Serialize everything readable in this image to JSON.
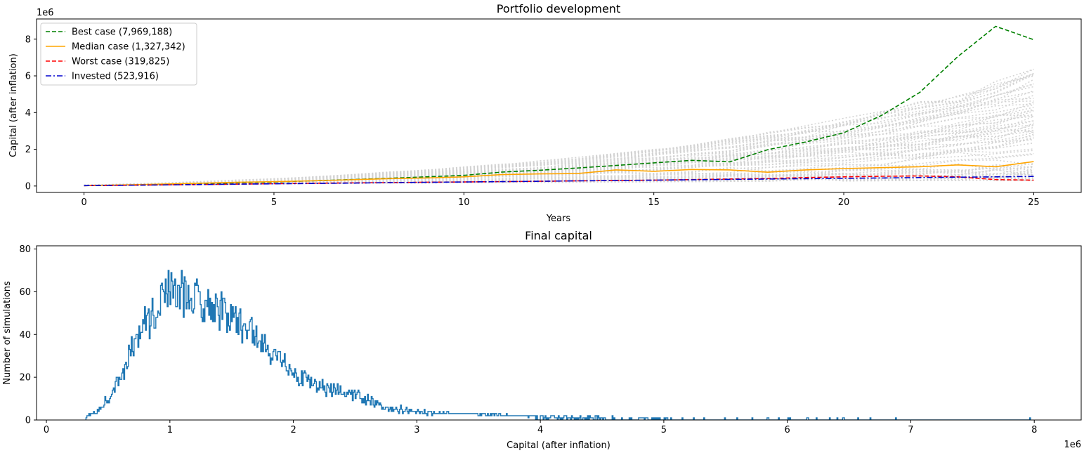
{
  "chart_data": [
    {
      "type": "line",
      "title": "Portfolio development",
      "xlabel": "Years",
      "ylabel": "Capital (after inflation)",
      "y_multiplier_label": "1e6",
      "xlim": [
        -1.25,
        26.25
      ],
      "ylim": [
        -0.35,
        9.1
      ],
      "x_ticks": [
        0,
        5,
        10,
        15,
        20,
        25
      ],
      "x_tick_labels": [
        "0",
        "5",
        "10",
        "15",
        "20",
        "25"
      ],
      "y_ticks": [
        0,
        2,
        4,
        6,
        8
      ],
      "y_tick_labels": [
        "0",
        "2",
        "4",
        "6",
        "8"
      ],
      "grid": false,
      "legend_position": "upper-left",
      "x": [
        0,
        1,
        2,
        3,
        4,
        5,
        6,
        7,
        8,
        9,
        10,
        11,
        12,
        13,
        14,
        15,
        16,
        17,
        18,
        19,
        20,
        21,
        22,
        23,
        24,
        25
      ],
      "series": [
        {
          "name": "Best case (7,969,188)",
          "color": "#008000",
          "style": "dashed",
          "values": [
            0.02,
            0.05,
            0.08,
            0.12,
            0.17,
            0.22,
            0.28,
            0.35,
            0.42,
            0.5,
            0.58,
            0.76,
            0.86,
            0.98,
            1.12,
            1.26,
            1.4,
            1.32,
            1.98,
            2.4,
            2.9,
            3.85,
            5.1,
            7.05,
            8.7,
            7.97
          ]
        },
        {
          "name": "Median case (1,327,342)",
          "color": "#ffa500",
          "style": "solid",
          "values": [
            0.02,
            0.06,
            0.1,
            0.15,
            0.2,
            0.24,
            0.28,
            0.34,
            0.4,
            0.44,
            0.5,
            0.62,
            0.66,
            0.68,
            0.88,
            0.8,
            0.9,
            0.88,
            0.75,
            0.88,
            0.95,
            1.0,
            1.05,
            1.15,
            1.05,
            1.33
          ]
        },
        {
          "name": "Worst case (319,825)",
          "color": "#ff0000",
          "style": "dashed",
          "values": [
            0.02,
            0.04,
            0.06,
            0.08,
            0.1,
            0.13,
            0.15,
            0.17,
            0.18,
            0.21,
            0.22,
            0.24,
            0.26,
            0.28,
            0.3,
            0.32,
            0.35,
            0.38,
            0.41,
            0.46,
            0.5,
            0.53,
            0.55,
            0.5,
            0.35,
            0.32
          ]
        },
        {
          "name": "Invested (523,916)",
          "color": "#0000cd",
          "style": "dashdot",
          "values": [
            0.02,
            0.04,
            0.06,
            0.08,
            0.1,
            0.12,
            0.14,
            0.16,
            0.18,
            0.2,
            0.22,
            0.24,
            0.26,
            0.28,
            0.3,
            0.32,
            0.34,
            0.36,
            0.38,
            0.4,
            0.42,
            0.44,
            0.46,
            0.48,
            0.5,
            0.524
          ]
        }
      ],
      "background_simulations": {
        "color": "#d3d3d3",
        "style": "dotted",
        "upper_envelope": [
          0.05,
          0.1,
          0.16,
          0.24,
          0.32,
          0.4,
          0.5,
          0.62,
          0.76,
          0.9,
          1.05,
          1.2,
          1.38,
          1.58,
          1.8,
          2.05,
          2.3,
          2.6,
          2.95,
          3.3,
          3.7,
          4.1,
          4.6,
          5.1,
          5.7,
          6.5
        ],
        "lower_envelope": [
          0.02,
          0.04,
          0.06,
          0.08,
          0.1,
          0.12,
          0.14,
          0.15,
          0.16,
          0.17,
          0.18,
          0.19,
          0.2,
          0.21,
          0.22,
          0.23,
          0.24,
          0.25,
          0.26,
          0.27,
          0.28,
          0.29,
          0.3,
          0.3,
          0.3,
          0.3
        ]
      }
    },
    {
      "type": "histogram",
      "title": "Final capital",
      "xlabel": "Capital (after inflation)",
      "ylabel": "Number of simulations",
      "x_multiplier_label": "1e6",
      "xlim": [
        -0.08,
        8.38
      ],
      "ylim": [
        0,
        81.5
      ],
      "x_ticks": [
        0,
        1,
        2,
        3,
        4,
        5,
        6,
        7,
        8
      ],
      "x_tick_labels": [
        "0",
        "1",
        "2",
        "3",
        "4",
        "5",
        "6",
        "7",
        "8"
      ],
      "y_ticks": [
        0,
        20,
        40,
        60,
        80
      ],
      "y_tick_labels": [
        "0",
        "20",
        "40",
        "60",
        "80"
      ],
      "grid": false,
      "color": "#1f77b4",
      "style": "step",
      "bin_range": [
        0.32,
        7.97
      ],
      "peak_count": 78,
      "profile_x": [
        0.32,
        0.4,
        0.5,
        0.6,
        0.7,
        0.8,
        0.9,
        0.97,
        1.05,
        1.15,
        1.25,
        1.35,
        1.45,
        1.55,
        1.65,
        1.75,
        1.85,
        1.95,
        2.05,
        2.2,
        2.35,
        2.5,
        2.6,
        2.7,
        2.85,
        3.0,
        3.2,
        3.4,
        3.6,
        3.8,
        4.0,
        4.3,
        4.6,
        5.0,
        5.5,
        6.0,
        7.0,
        7.97
      ],
      "profile_y": [
        1,
        3,
        10,
        20,
        35,
        45,
        52,
        62,
        60,
        58,
        57,
        54,
        50,
        46,
        42,
        36,
        30,
        26,
        20,
        16,
        13,
        11,
        9,
        7,
        5,
        4,
        3,
        2.5,
        2,
        1.5,
        1.2,
        0.9,
        0.6,
        0.4,
        0.25,
        0.15,
        0.05,
        0
      ]
    }
  ]
}
